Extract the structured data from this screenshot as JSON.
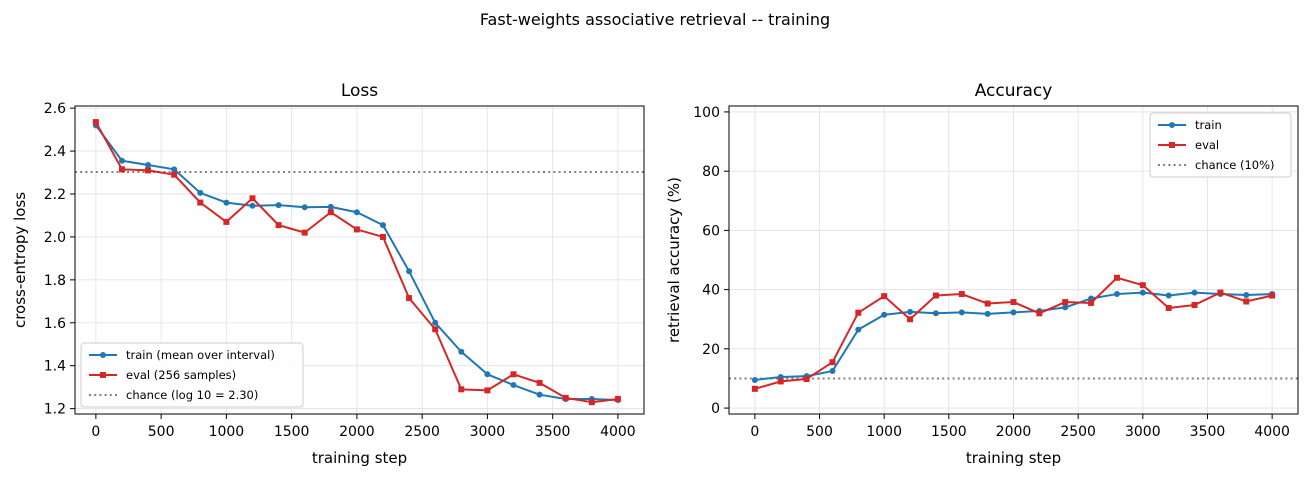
{
  "figure": {
    "suptitle": "Fast-weights associative retrieval -- training"
  },
  "colors": {
    "train": "#1f77b4",
    "eval": "#d62728",
    "chance": "#808080"
  },
  "chart_data": [
    {
      "type": "line",
      "title": "Loss",
      "xlabel": "training step",
      "ylabel": "cross-entropy loss",
      "xlim": [
        -160,
        4200
      ],
      "ylim": [
        1.175,
        2.61
      ],
      "xticks": [
        0,
        500,
        1000,
        1500,
        2000,
        2500,
        3000,
        3500,
        4000
      ],
      "yticks": [
        1.2,
        1.4,
        1.6,
        1.8,
        2.0,
        2.2,
        2.4,
        2.6
      ],
      "ytick_labels": [
        "1.2",
        "1.4",
        "1.6",
        "1.8",
        "2.0",
        "2.2",
        "2.4",
        "2.6"
      ],
      "grid": true,
      "legend_position": "lower-left",
      "x": [
        0,
        200,
        400,
        600,
        800,
        1000,
        1200,
        1400,
        1600,
        1800,
        2000,
        2200,
        2400,
        2600,
        2800,
        3000,
        3200,
        3400,
        3600,
        3800,
        4000
      ],
      "series": [
        {
          "name": "train (mean over interval)",
          "color_key": "train",
          "marker": "circle",
          "values": [
            2.52,
            2.355,
            2.335,
            2.315,
            2.205,
            2.16,
            2.145,
            2.148,
            2.138,
            2.14,
            2.115,
            2.055,
            1.84,
            1.6,
            1.465,
            1.36,
            1.31,
            1.265,
            1.245,
            1.245,
            1.24
          ]
        },
        {
          "name": "eval (256 samples)",
          "color_key": "eval",
          "marker": "square",
          "values": [
            2.535,
            2.315,
            2.31,
            2.29,
            2.16,
            2.07,
            2.18,
            2.055,
            2.02,
            2.115,
            2.035,
            2.0,
            1.715,
            1.57,
            1.29,
            1.285,
            1.36,
            1.32,
            1.25,
            1.23,
            1.245
          ]
        }
      ],
      "reference_line": {
        "name": "chance (log 10 = 2.30)",
        "y": 2.3026,
        "style": "dotted",
        "color_key": "chance"
      }
    },
    {
      "type": "line",
      "title": "Accuracy",
      "xlabel": "training step",
      "ylabel": "retrieval accuracy (%)",
      "xlim": [
        -200,
        4200
      ],
      "ylim": [
        -2,
        102
      ],
      "xticks": [
        0,
        500,
        1000,
        1500,
        2000,
        2500,
        3000,
        3500,
        4000
      ],
      "yticks": [
        0,
        20,
        40,
        60,
        80,
        100
      ],
      "ytick_labels": [
        "0",
        "20",
        "40",
        "60",
        "80",
        "100"
      ],
      "grid": true,
      "legend_position": "upper-right",
      "x": [
        0,
        200,
        400,
        600,
        800,
        1000,
        1200,
        1400,
        1600,
        1800,
        2000,
        2200,
        2400,
        2600,
        2800,
        3000,
        3200,
        3400,
        3600,
        3800,
        4000
      ],
      "series": [
        {
          "name": "train",
          "color_key": "train",
          "marker": "circle",
          "values": [
            9.5,
            10.5,
            10.8,
            12.5,
            26.5,
            31.5,
            32.5,
            32.0,
            32.3,
            31.8,
            32.3,
            32.8,
            34.0,
            37.0,
            38.5,
            39.0,
            38.0,
            39.0,
            38.5,
            38.2,
            38.5
          ]
        },
        {
          "name": "eval",
          "color_key": "eval",
          "marker": "square",
          "values": [
            6.5,
            9.0,
            9.8,
            15.5,
            32.2,
            37.8,
            30.0,
            38.0,
            38.5,
            35.3,
            35.8,
            32.0,
            35.8,
            35.5,
            44.0,
            41.5,
            33.8,
            34.8,
            39.0,
            36.0,
            38.0
          ]
        }
      ],
      "reference_line": {
        "name": "chance (10%)",
        "y": 10,
        "style": "dotted",
        "color_key": "chance"
      }
    }
  ]
}
